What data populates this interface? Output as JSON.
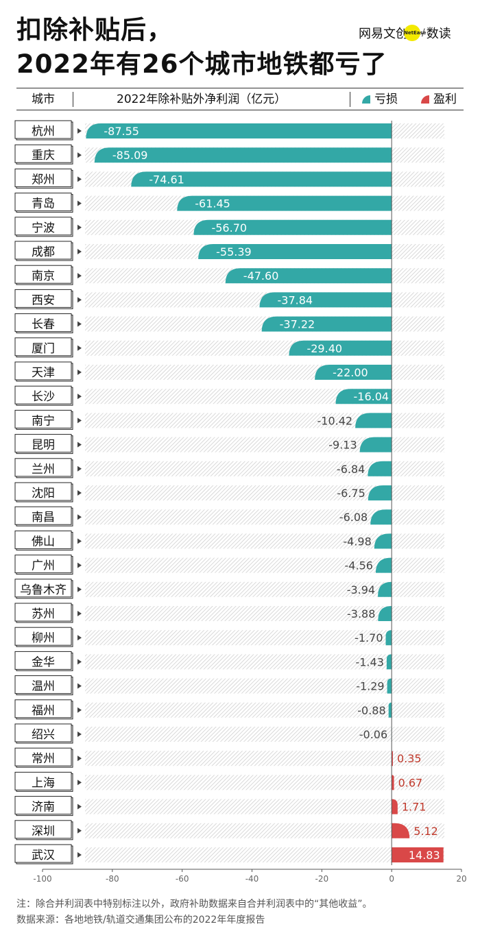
{
  "header": {
    "title_line1": "扣除补贴后，",
    "title_line2": "2022年有26个城市地铁都亏了",
    "brand_text": "网易文创",
    "brand_badge": "NetEase",
    "brand_section": "数读"
  },
  "table_header": {
    "city_col": "城市",
    "value_col": "2022年除补贴外净利润（亿元）",
    "legend_loss": "亏损",
    "legend_profit": "盈利"
  },
  "colors": {
    "loss": "#33a8a6",
    "profit": "#d94848",
    "hatch": "#d4d4d4"
  },
  "chart_data": {
    "type": "bar",
    "orientation": "horizontal",
    "title": "2022年除补贴外净利润（亿元）",
    "xlim": [
      -100,
      20
    ],
    "xticks": [
      -100,
      -80,
      -60,
      -40,
      -20,
      0,
      20
    ],
    "categories": [
      "杭州",
      "重庆",
      "郑州",
      "青岛",
      "宁波",
      "成都",
      "南京",
      "西安",
      "长春",
      "厦门",
      "天津",
      "长沙",
      "南宁",
      "昆明",
      "兰州",
      "沈阳",
      "南昌",
      "佛山",
      "广州",
      "乌鲁木齐",
      "苏州",
      "柳州",
      "金华",
      "温州",
      "福州",
      "绍兴",
      "常州",
      "上海",
      "济南",
      "深圳",
      "武汉"
    ],
    "values": [
      -87.55,
      -85.09,
      -74.61,
      -61.45,
      -56.7,
      -55.39,
      -47.6,
      -37.84,
      -37.22,
      -29.4,
      -22.0,
      -16.04,
      -10.42,
      -9.13,
      -6.84,
      -6.75,
      -6.08,
      -4.98,
      -4.56,
      -3.94,
      -3.88,
      -1.7,
      -1.43,
      -1.29,
      -0.88,
      -0.06,
      0.35,
      0.67,
      1.71,
      5.12,
      14.83
    ],
    "labels": [
      "-87.55",
      "-85.09",
      "-74.61",
      "-61.45",
      "-56.70",
      "-55.39",
      "-47.60",
      "-37.84",
      "-37.22",
      "-29.40",
      "-22.00",
      "-16.04",
      "-10.42",
      "-9.13",
      "-6.84",
      "-6.75",
      "-6.08",
      "-4.98",
      "-4.56",
      "-3.94",
      "-3.88",
      "-1.70",
      "-1.43",
      "-1.29",
      "-0.88",
      "-0.06",
      "0.35",
      "0.67",
      "1.71",
      "5.12",
      "14.83"
    ]
  },
  "footer": {
    "note": "注：除合并利润表中特别标注以外，政府补助数据来自合并利润表中的“其他收益”。",
    "source": "数据来源：各地地铁/轨道交通集团公布的2022年年度报告"
  }
}
